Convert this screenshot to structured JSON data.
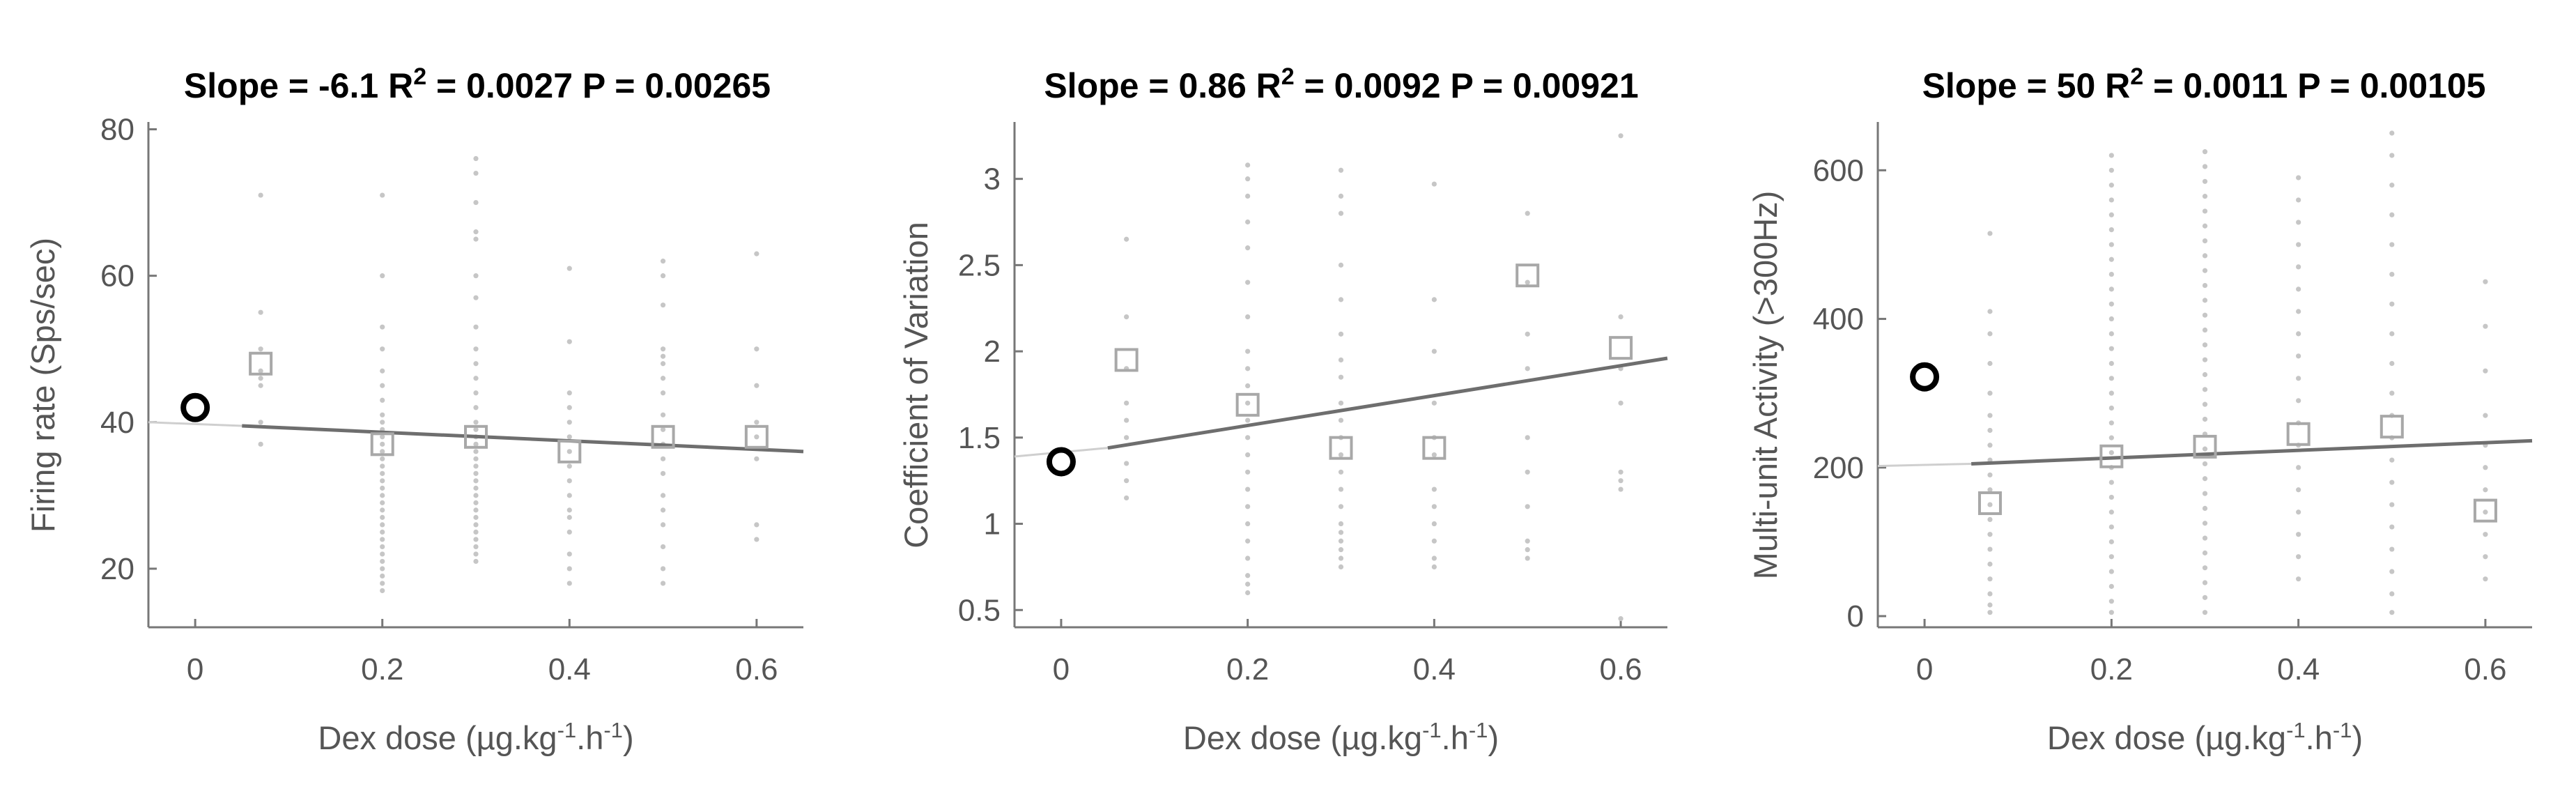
{
  "chart_data": [
    {
      "type": "scatter",
      "title": {
        "prefix": "Slope = -6.1 R",
        "sup": "2",
        "suffix": " = 0.0027 P = 0.00265"
      },
      "xlabel": {
        "prefix": "Dex dose (µg.kg",
        "sup1": "-1",
        "middle": ".h",
        "sup2": "-1",
        "suffix": ")"
      },
      "ylabel": "Firing rate (Sps/sec)",
      "xlim": [
        -0.05,
        0.65
      ],
      "ylim": [
        12,
        81
      ],
      "xticks": [
        "0",
        "0.2",
        "0.4",
        "0.6"
      ],
      "yticks": [
        "20",
        "40",
        "60",
        "80"
      ],
      "baseline": {
        "x": 0,
        "y": 42
      },
      "means": {
        "x": [
          0.07,
          0.2,
          0.3,
          0.4,
          0.5,
          0.6
        ],
        "y": [
          48,
          37,
          38,
          36,
          38,
          38
        ]
      },
      "fit": {
        "x": [
          0.05,
          0.65
        ],
        "y": [
          39.5,
          36
        ],
        "extension_y0": 40
      },
      "raw": [
        {
          "x": 0.07,
          "y": [
            71,
            55,
            50,
            47,
            46,
            45,
            40,
            37
          ]
        },
        {
          "x": 0.2,
          "y": [
            71,
            60,
            53,
            50,
            47,
            45,
            43,
            41,
            40,
            39,
            38,
            37,
            36,
            35,
            34,
            33,
            32,
            31,
            30,
            29,
            28,
            27,
            26,
            25,
            24,
            23,
            22,
            21,
            20,
            19,
            18,
            17
          ]
        },
        {
          "x": 0.3,
          "y": [
            76,
            74,
            70,
            66,
            65,
            60,
            57,
            53,
            50,
            48,
            46,
            44,
            42,
            40,
            39,
            38,
            37,
            36,
            35,
            34,
            33,
            32,
            31,
            30,
            29,
            28,
            27,
            26,
            25,
            24,
            23,
            22,
            21
          ]
        },
        {
          "x": 0.4,
          "y": [
            61,
            51,
            44,
            42,
            40,
            38,
            36,
            34,
            32,
            30,
            28,
            27,
            25,
            22,
            20,
            18
          ]
        },
        {
          "x": 0.5,
          "y": [
            62,
            60,
            56,
            50,
            49,
            48,
            46,
            44,
            41,
            39,
            37,
            35,
            33,
            30,
            28,
            26,
            23,
            20,
            18
          ]
        },
        {
          "x": 0.6,
          "y": [
            63,
            50,
            45,
            40,
            38,
            35,
            26,
            24
          ]
        }
      ]
    },
    {
      "type": "scatter",
      "title": {
        "prefix": "Slope = 0.86 R",
        "sup": "2",
        "suffix": " = 0.0092 P = 0.00921"
      },
      "xlabel": {
        "prefix": "Dex dose (µg.kg",
        "sup1": "-1",
        "middle": ".h",
        "sup2": "-1",
        "suffix": ")"
      },
      "ylabel": "Coefficient of Variation",
      "xlim": [
        -0.05,
        0.65
      ],
      "ylim": [
        0.4,
        3.33
      ],
      "xticks": [
        "0",
        "0.2",
        "0.4",
        "0.6"
      ],
      "yticks": [
        "0.5",
        "1",
        "1.5",
        "2",
        "2.5",
        "3"
      ],
      "baseline": {
        "x": 0,
        "y": 1.36
      },
      "means": {
        "x": [
          0.07,
          0.2,
          0.3,
          0.4,
          0.5,
          0.6
        ],
        "y": [
          1.95,
          1.69,
          1.44,
          1.44,
          2.44,
          2.02
        ]
      },
      "fit": {
        "x": [
          0.05,
          0.65
        ],
        "y": [
          1.44,
          1.96
        ],
        "extension_y0": 1.39
      },
      "raw": [
        {
          "x": 0.07,
          "y": [
            2.65,
            2.2,
            1.9,
            1.7,
            1.6,
            1.5,
            1.35,
            1.25,
            1.15
          ]
        },
        {
          "x": 0.2,
          "y": [
            3.08,
            3.0,
            2.9,
            2.75,
            2.6,
            2.4,
            2.2,
            2.0,
            1.9,
            1.8,
            1.7,
            1.6,
            1.5,
            1.4,
            1.3,
            1.2,
            1.1,
            1.0,
            0.9,
            0.8,
            0.7,
            0.65,
            0.6
          ]
        },
        {
          "x": 0.3,
          "y": [
            3.05,
            2.9,
            2.8,
            2.5,
            2.3,
            2.1,
            1.95,
            1.85,
            1.7,
            1.6,
            1.5,
            1.4,
            1.3,
            1.2,
            1.1,
            1.0,
            0.95,
            0.9,
            0.85,
            0.8,
            0.75
          ]
        },
        {
          "x": 0.4,
          "y": [
            2.97,
            2.3,
            2.0,
            1.7,
            1.5,
            1.4,
            1.2,
            1.1,
            1.0,
            0.9,
            0.8,
            0.75
          ]
        },
        {
          "x": 0.5,
          "y": [
            2.8,
            2.4,
            2.1,
            1.9,
            1.5,
            1.3,
            1.1,
            0.9,
            0.85,
            0.8
          ]
        },
        {
          "x": 0.6,
          "y": [
            3.25,
            2.2,
            1.9,
            1.7,
            1.3,
            1.25,
            1.2,
            0.45
          ]
        }
      ]
    },
    {
      "type": "scatter",
      "title": {
        "prefix": "Slope = 50 R",
        "sup": "2",
        "suffix": " = 0.0011 P = 0.00105"
      },
      "xlabel": {
        "prefix": "Dex dose (µg.kg",
        "sup1": "-1",
        "middle": ".h",
        "sup2": "-1",
        "suffix": ")"
      },
      "ylabel": "Multi-unit Activity (>300Hz)",
      "xlim": [
        -0.05,
        0.65
      ],
      "ylim": [
        -15,
        665
      ],
      "xticks": [
        "0",
        "0.2",
        "0.4",
        "0.6"
      ],
      "yticks": [
        "0",
        "200",
        "400",
        "600"
      ],
      "baseline": {
        "x": 0,
        "y": 322
      },
      "means": {
        "x": [
          0.07,
          0.2,
          0.3,
          0.4,
          0.5,
          0.6
        ],
        "y": [
          152,
          215,
          228,
          245,
          255,
          142
        ]
      },
      "fit": {
        "x": [
          0.05,
          0.65
        ],
        "y": [
          205,
          236
        ],
        "extension_y0": 202
      },
      "raw": [
        {
          "x": 0.07,
          "y": [
            515,
            410,
            380,
            340,
            300,
            270,
            250,
            230,
            210,
            190,
            170,
            150,
            130,
            110,
            90,
            70,
            50,
            30,
            15,
            5
          ]
        },
        {
          "x": 0.2,
          "y": [
            620,
            600,
            580,
            560,
            540,
            520,
            500,
            480,
            460,
            440,
            420,
            400,
            380,
            360,
            340,
            320,
            300,
            280,
            260,
            240,
            220,
            200,
            180,
            160,
            140,
            120,
            100,
            80,
            60,
            40,
            20,
            5
          ]
        },
        {
          "x": 0.3,
          "y": [
            625,
            605,
            585,
            565,
            545,
            525,
            505,
            485,
            465,
            445,
            425,
            405,
            385,
            365,
            345,
            325,
            305,
            285,
            265,
            245,
            225,
            205,
            185,
            165,
            145,
            125,
            105,
            85,
            65,
            45,
            25,
            5
          ]
        },
        {
          "x": 0.4,
          "y": [
            590,
            560,
            530,
            500,
            470,
            440,
            410,
            380,
            350,
            320,
            290,
            260,
            230,
            200,
            170,
            140,
            110,
            80,
            50
          ]
        },
        {
          "x": 0.5,
          "y": [
            650,
            620,
            580,
            540,
            500,
            460,
            420,
            380,
            340,
            300,
            270,
            240,
            210,
            180,
            150,
            120,
            90,
            60,
            30,
            5
          ]
        },
        {
          "x": 0.6,
          "y": [
            450,
            390,
            330,
            270,
            230,
            200,
            170,
            140,
            110,
            80,
            50
          ]
        }
      ]
    }
  ]
}
